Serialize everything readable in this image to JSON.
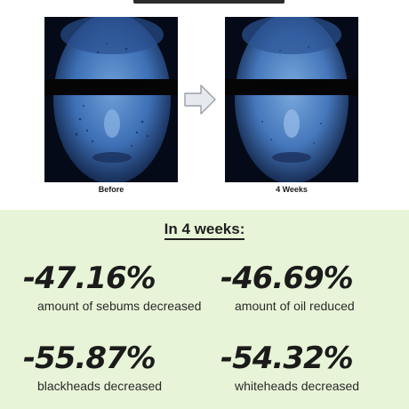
{
  "comparison": {
    "before_label": "Before",
    "after_label": "4 Weeks"
  },
  "results": {
    "heading": "In 4 weeks:",
    "stats": [
      {
        "value": "-47.16%",
        "label": "amount of sebums decreased"
      },
      {
        "value": "-46.69%",
        "label": "amount of oil reduced"
      },
      {
        "value": "-55.87%",
        "label": "blackheads decreased"
      },
      {
        "value": "-54.32%",
        "label": "whiteheads decreased"
      }
    ]
  },
  "colors": {
    "panel_background": "#e8f4d7",
    "uv_face": "#4a7fc4",
    "text_dark": "#1f1f1f"
  }
}
